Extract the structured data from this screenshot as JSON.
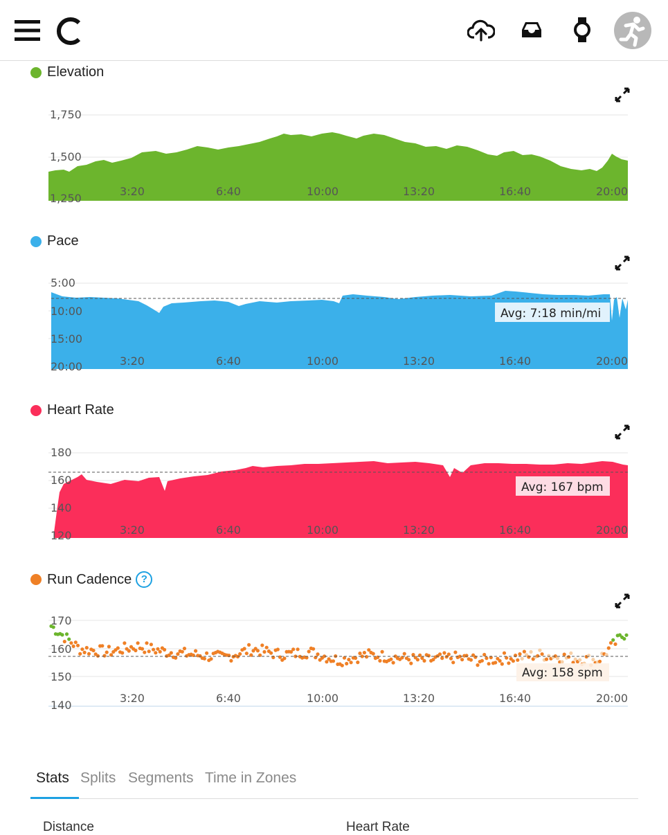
{
  "header": {
    "menu_icon": "hamburger-menu-icon",
    "logo_icon": "garmin-connect-logo-icon",
    "upload_icon": "cloud-upload-icon",
    "inbox_icon": "inbox-tray-icon",
    "device_icon": "watch-icon",
    "avatar_icon": "runner-avatar-icon"
  },
  "charts": {
    "elevation": {
      "title": "Elevation",
      "color": "#6cb52d",
      "yticks": [
        "1,750",
        "1,500",
        "1,250"
      ],
      "xticks": [
        "3:20",
        "6:40",
        "10:00",
        "13:20",
        "16:40",
        "20:00"
      ]
    },
    "pace": {
      "title": "Pace",
      "color": "#3bb0ea",
      "yticks": [
        "5:00",
        "10:00",
        "15:00",
        "20:00"
      ],
      "xticks": [
        "3:20",
        "6:40",
        "10:00",
        "13:20",
        "16:40",
        "20:00"
      ],
      "avg_label": "Avg: 7:18 min/mi"
    },
    "heart_rate": {
      "title": "Heart Rate",
      "color": "#fb2e5a",
      "yticks": [
        "180",
        "160",
        "140",
        "120"
      ],
      "xticks": [
        "3:20",
        "6:40",
        "10:00",
        "13:20",
        "16:40",
        "20:00"
      ],
      "avg_label": "Avg: 167 bpm"
    },
    "cadence": {
      "title": "Run Cadence",
      "color": "#ef8026",
      "yticks": [
        "170",
        "160",
        "150",
        "140"
      ],
      "xticks": [
        "3:20",
        "6:40",
        "10:00",
        "13:20",
        "16:40",
        "20:00"
      ],
      "avg_label": "Avg: 158 spm"
    }
  },
  "chart_data": [
    {
      "type": "area",
      "title": "Elevation",
      "x_unit": "min:sec",
      "ylim": [
        1250,
        1850
      ],
      "x": [
        0,
        1,
        2,
        3,
        4,
        5,
        6,
        7,
        8,
        9,
        10,
        11,
        12,
        13,
        14,
        15,
        16,
        17,
        18,
        19,
        20
      ],
      "values": [
        1420,
        1415,
        1440,
        1455,
        1490,
        1530,
        1545,
        1580,
        1600,
        1620,
        1640,
        1655,
        1640,
        1650,
        1600,
        1580,
        1560,
        1520,
        1480,
        1450,
        1520
      ]
    },
    {
      "type": "area",
      "title": "Pace",
      "x_unit": "min:sec",
      "ylim": [
        5,
        20
      ],
      "y_inverted": true,
      "avg": 7.3,
      "x": [
        0,
        1,
        2,
        3,
        4,
        5,
        6,
        7,
        8,
        9,
        10,
        11,
        12,
        13,
        14,
        15,
        16,
        17,
        18,
        19,
        20
      ],
      "values": [
        7.3,
        7.5,
        7.8,
        9.8,
        8.0,
        7.8,
        7.6,
        7.9,
        7.7,
        7.5,
        7.4,
        6.6,
        6.9,
        7.0,
        6.8,
        6.9,
        6.8,
        6.3,
        6.6,
        6.7,
        6.8
      ]
    },
    {
      "type": "area",
      "title": "Heart Rate",
      "x_unit": "min:sec",
      "ylim": [
        120,
        185
      ],
      "avg": 167,
      "x": [
        0,
        1,
        2,
        3,
        4,
        5,
        6,
        7,
        8,
        9,
        10,
        11,
        12,
        13,
        14,
        15,
        16,
        17,
        18,
        19,
        20
      ],
      "values": [
        130,
        158,
        161,
        160,
        162,
        163,
        165,
        168,
        170,
        172,
        171,
        173,
        172,
        174,
        167,
        172,
        171,
        172,
        173,
        174,
        173
      ]
    },
    {
      "type": "scatter",
      "title": "Run Cadence",
      "x_unit": "min:sec",
      "ylim": [
        140,
        172
      ],
      "avg": 158,
      "x": [
        0,
        1,
        2,
        3,
        4,
        5,
        6,
        7,
        8,
        9,
        10,
        11,
        12,
        13,
        14,
        15,
        16,
        17,
        18,
        19,
        20
      ],
      "values": [
        168,
        160,
        159,
        161,
        159,
        158,
        157,
        160,
        158,
        159,
        156,
        158,
        157,
        156,
        157,
        156,
        157,
        158,
        157,
        156,
        166
      ]
    }
  ],
  "tabs": [
    {
      "label": "Stats",
      "active": true
    },
    {
      "label": "Splits",
      "active": false
    },
    {
      "label": "Segments",
      "active": false
    },
    {
      "label": "Time in Zones",
      "active": false
    }
  ],
  "stats": {
    "distance_label": "Distance",
    "heart_rate_label": "Heart Rate"
  }
}
